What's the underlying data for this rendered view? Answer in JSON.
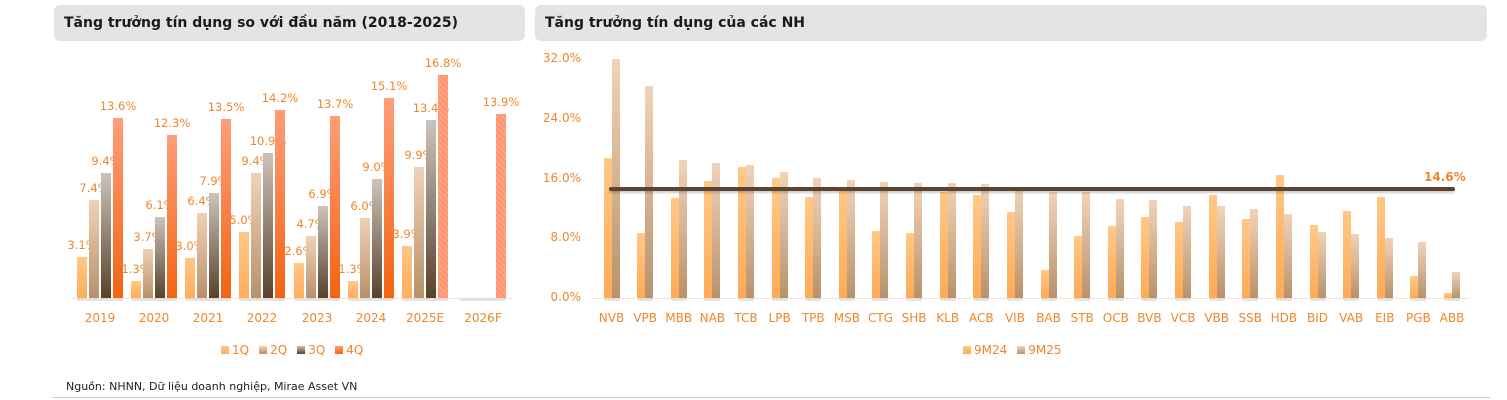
{
  "left_panel": {
    "title": "Tăng trưởng tín dụng so với đầu năm (2018-2025)"
  },
  "right_panel": {
    "title": "Tăng trưởng tín dụng của các NH"
  },
  "source": "Nguồn: NHNN, Dữ liệu doanh nghiệp, Mirae Asset VN",
  "colors": {
    "q1": "#ffb46a",
    "q2": "#d9b597",
    "q3": "#7d6553",
    "q4": "#f47a3c",
    "m24": "#ffb46a",
    "m25": "#d2ae8f",
    "avg_line": "#5b4431",
    "label": "#f0862a"
  },
  "chart_data": [
    {
      "type": "bar",
      "title": "Tăng trưởng tín dụng so với đầu năm (2018-2025)",
      "categories": [
        "2019",
        "2020",
        "2021",
        "2022",
        "2023",
        "2024",
        "2025E",
        "2026F"
      ],
      "series": [
        {
          "name": "1Q",
          "values": [
            3.1,
            1.3,
            3.0,
            5.0,
            2.6,
            1.3,
            3.9,
            null
          ],
          "labels": [
            "3.1%",
            "1.3%",
            "3.0%",
            "5.0%",
            "2.6%",
            "1.3%",
            "3.9%",
            ""
          ]
        },
        {
          "name": "2Q",
          "values": [
            7.4,
            3.7,
            6.4,
            9.4,
            4.7,
            6.0,
            9.9,
            null
          ],
          "labels": [
            "7.4%",
            "3.7%",
            "6.4%",
            "9.4%",
            "4.7%",
            "6.0%",
            "9.9%",
            ""
          ]
        },
        {
          "name": "3Q",
          "values": [
            9.4,
            6.1,
            7.9,
            10.9,
            6.9,
            9.0,
            13.4,
            null
          ],
          "labels": [
            "9.4%",
            "6.1%",
            "7.9%",
            "10.9%",
            "6.9%",
            "9.0%",
            "13.4%",
            ""
          ]
        },
        {
          "name": "4Q",
          "values": [
            13.6,
            12.3,
            13.5,
            14.2,
            13.7,
            15.1,
            16.8,
            13.9
          ],
          "labels": [
            "13.6%",
            "12.3%",
            "13.5%",
            "14.2%",
            "13.7%",
            "15.1%",
            "16.8%",
            "13.9%"
          ]
        }
      ],
      "xlabel": "",
      "ylabel": "",
      "ylim": [
        0,
        17
      ],
      "grid": false,
      "legend": [
        "1Q",
        "2Q",
        "3Q",
        "4Q"
      ],
      "legend_position": "bottom"
    },
    {
      "type": "bar",
      "title": "Tăng trưởng tín dụng của các NH",
      "categories": [
        "NVB",
        "VPB",
        "MBB",
        "NAB",
        "TCB",
        "LPB",
        "TPB",
        "MSB",
        "CTG",
        "SHB",
        "KLB",
        "ACB",
        "VIB",
        "BAB",
        "STB",
        "OCB",
        "BVB",
        "VCB",
        "VBB",
        "SSB",
        "HDB",
        "BID",
        "VAB",
        "EIB",
        "PGB",
        "ABB"
      ],
      "series": [
        {
          "name": "9M24",
          "values": [
            18.8,
            8.7,
            13.4,
            15.7,
            17.6,
            16.1,
            13.5,
            14.5,
            9.0,
            8.7,
            14.2,
            13.8,
            11.5,
            3.7,
            8.3,
            9.6,
            10.8,
            10.2,
            13.8,
            10.6,
            16.5,
            9.8,
            11.6,
            13.5,
            2.9,
            0.7
          ]
        },
        {
          "name": "9M25",
          "values": [
            32.0,
            28.4,
            18.5,
            18.1,
            17.8,
            16.9,
            16.1,
            15.8,
            15.5,
            15.4,
            15.4,
            15.3,
            14.8,
            14.2,
            14.2,
            13.3,
            13.1,
            12.3,
            12.3,
            11.9,
            11.2,
            8.8,
            8.6,
            8.0,
            7.5,
            3.5
          ]
        }
      ],
      "average_line": {
        "value": 14.6,
        "label": "14.6%"
      },
      "yticks": [
        "0.0%",
        "8.0%",
        "16.0%",
        "24.0%",
        "32.0%"
      ],
      "ylim": [
        0,
        32
      ],
      "xlabel": "",
      "ylabel": "",
      "grid": false,
      "legend": [
        "9M24",
        "9M25"
      ],
      "legend_position": "bottom"
    }
  ]
}
